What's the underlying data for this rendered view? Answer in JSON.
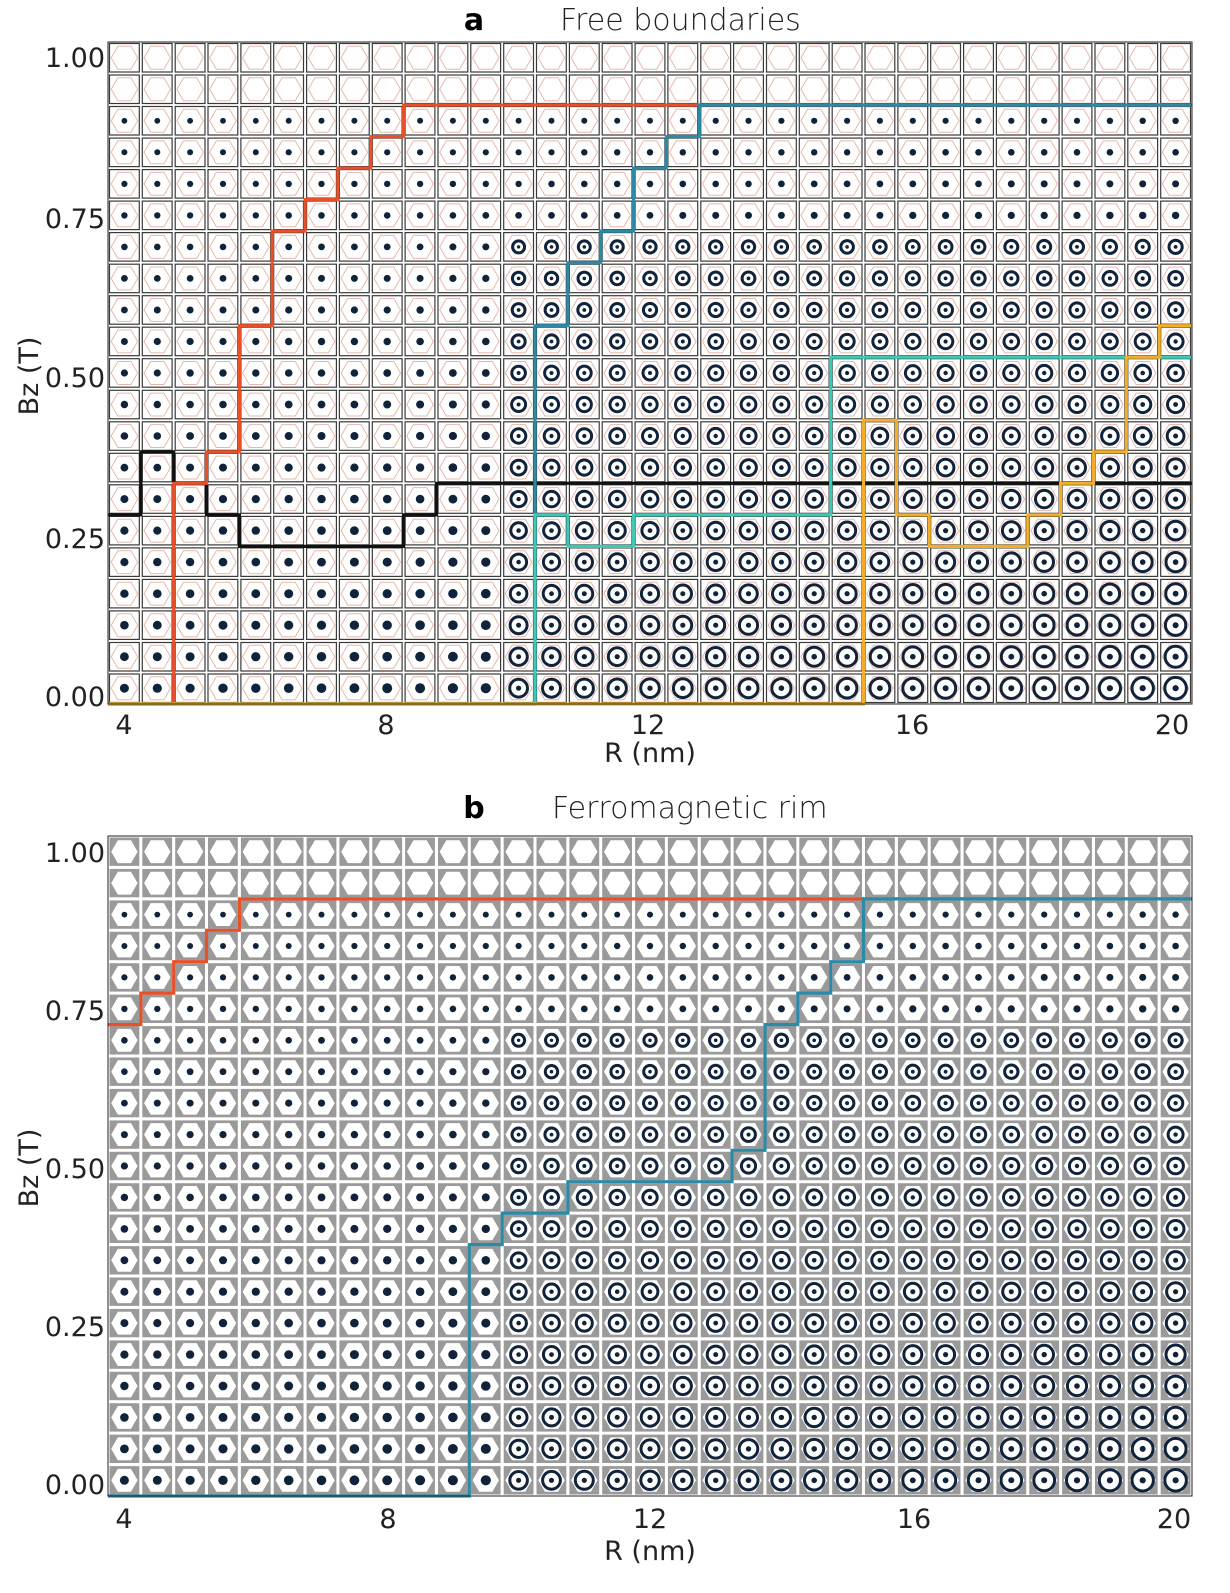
{
  "chart_data": [
    {
      "type": "heatmap",
      "panel": "a",
      "title": "Free boundaries",
      "xlabel": "R  (nm)",
      "ylabel": "Bz (T)",
      "xlim": [
        4,
        20
      ],
      "ylim": [
        0,
        1
      ],
      "x_ticks": [
        "4",
        "8",
        "12",
        "16",
        "20"
      ],
      "y_ticks": [
        "0.00",
        "0.25",
        "0.50",
        "0.75",
        "1.00"
      ],
      "grid_columns": 33,
      "grid_rows": 21,
      "cell_background": "#ffffff",
      "regions": [
        {
          "color": "#111111",
          "boundary_heights": [
            6,
            8,
            7,
            6,
            5,
            5,
            5,
            5,
            5,
            6,
            7,
            7,
            7,
            7,
            7,
            7,
            7,
            7,
            7,
            7,
            7,
            7,
            7,
            7,
            7,
            7,
            7,
            7,
            7,
            7,
            7,
            7,
            7
          ]
        },
        {
          "color": "#e8502a",
          "boundary_heights": [
            0,
            0,
            7,
            8,
            12,
            15,
            16,
            17,
            18,
            19,
            19,
            19,
            19,
            19,
            19,
            19,
            19,
            19,
            19,
            19,
            19,
            19,
            19,
            19,
            19,
            19,
            19,
            19,
            19,
            19,
            19,
            19,
            19
          ]
        },
        {
          "color": "#2c8aa6",
          "boundary_heights": [
            0,
            0,
            0,
            0,
            0,
            0,
            0,
            0,
            0,
            0,
            0,
            0,
            0,
            12,
            14,
            15,
            17,
            18,
            19,
            19,
            19,
            19,
            19,
            19,
            19,
            19,
            19,
            19,
            19,
            19,
            19,
            19,
            19
          ]
        },
        {
          "color": "#3ec9b4",
          "boundary_heights": [
            0,
            0,
            0,
            0,
            0,
            0,
            0,
            0,
            0,
            0,
            0,
            0,
            0,
            6,
            5,
            5,
            6,
            6,
            6,
            6,
            6,
            6,
            11,
            11,
            11,
            11,
            11,
            11,
            11,
            11,
            11,
            11,
            11
          ]
        },
        {
          "color": "#f2ad2a",
          "boundary_heights": [
            0,
            0,
            0,
            0,
            0,
            0,
            0,
            0,
            0,
            0,
            0,
            0,
            0,
            0,
            0,
            0,
            0,
            0,
            0,
            0,
            0,
            0,
            0,
            9,
            6,
            5,
            5,
            5,
            6,
            7,
            8,
            11,
            12
          ]
        },
        {
          "color": "#6a2fa3",
          "boundary_heights": [
            0,
            0,
            0,
            0,
            0,
            0,
            0,
            0,
            0,
            0,
            0,
            0,
            0,
            0,
            0,
            0,
            0,
            0,
            0,
            0,
            0,
            0,
            0,
            0,
            0,
            0,
            0,
            0,
            0,
            0,
            0,
            0,
            0
          ]
        }
      ]
    },
    {
      "type": "heatmap",
      "panel": "b",
      "title": "Ferromagnetic rim",
      "xlabel": "R  (nm)",
      "ylabel": "Bz (T)",
      "xlim": [
        4,
        20
      ],
      "ylim": [
        0,
        1
      ],
      "x_ticks": [
        "4",
        "8",
        "12",
        "16",
        "20"
      ],
      "y_ticks": [
        "0.00",
        "0.25",
        "0.50",
        "0.75",
        "1.00"
      ],
      "grid_columns": 33,
      "grid_rows": 21,
      "cell_background": "#9a9a9a",
      "regions": [
        {
          "color": "#e8502a",
          "boundary_heights": [
            15,
            16,
            17,
            18,
            19,
            19,
            19,
            19,
            19,
            19,
            19,
            19,
            19,
            19,
            19,
            19,
            19,
            19,
            19,
            19,
            19,
            19,
            19,
            19,
            19,
            19,
            19,
            19,
            19,
            19,
            19,
            19,
            19
          ]
        },
        {
          "color": "#2c8aa6",
          "boundary_heights": [
            0,
            0,
            0,
            0,
            0,
            0,
            0,
            0,
            0,
            0,
            0,
            8,
            9,
            9,
            10,
            10,
            10,
            10,
            10,
            11,
            15,
            16,
            17,
            19,
            19,
            19,
            19,
            19,
            19,
            19,
            19,
            19,
            19
          ]
        },
        {
          "color": "#3ec9b4",
          "boundary_heights": [
            0,
            0,
            0,
            0,
            0,
            0,
            0,
            0,
            0,
            0,
            0,
            0,
            0,
            0,
            0,
            0,
            0,
            0,
            0,
            0,
            0,
            0,
            0,
            0,
            0,
            0,
            0,
            0,
            0,
            0,
            0,
            0,
            0
          ]
        },
        {
          "color": "#f2ad2a",
          "boundary_heights": [
            0,
            0,
            0,
            0,
            0,
            0,
            0,
            0,
            0,
            0,
            0,
            0,
            0,
            0,
            0,
            0,
            0,
            0,
            0,
            0,
            0,
            0,
            0,
            0,
            0,
            0,
            0,
            0,
            0,
            0,
            0,
            0,
            0
          ]
        },
        {
          "color": "#6a2fa3",
          "boundary_heights": [
            0,
            0,
            0,
            0,
            0,
            0,
            0,
            0,
            0,
            0,
            0,
            0,
            0,
            0,
            0,
            0,
            0,
            0,
            0,
            0,
            0,
            0,
            0,
            0,
            0,
            0,
            0,
            0,
            0,
            0,
            0,
            0,
            0
          ]
        },
        {
          "color": "#f07d7d",
          "boundary_heights": [
            0,
            0,
            0,
            0,
            0,
            0,
            0,
            0,
            0,
            0,
            0,
            0,
            0,
            0,
            0,
            0,
            0,
            0,
            0,
            0,
            0,
            0,
            0,
            0,
            0,
            0,
            0,
            0,
            0,
            0,
            0,
            0,
            0
          ]
        }
      ]
    }
  ]
}
